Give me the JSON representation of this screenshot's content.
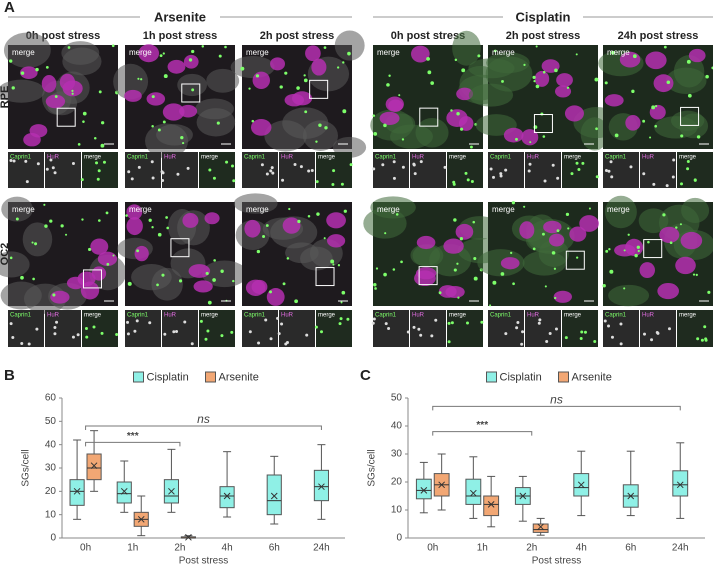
{
  "panel_a": {
    "label": "A",
    "groups": [
      {
        "title": "Arsenite",
        "columns": [
          "0h post stress",
          "1h post stress",
          "2h post stress"
        ]
      },
      {
        "title": "Cisplatin",
        "columns": [
          "0h post stress",
          "2h post stress",
          "24h post stress"
        ]
      }
    ],
    "rows": [
      "RPE",
      "OC2"
    ],
    "image_label": "merge",
    "channels": [
      "Caprin1",
      "HuR",
      "merge"
    ]
  },
  "chart_data": [
    {
      "type": "box",
      "panel_label": "B",
      "ylabel": "SGs/cell",
      "xlabel": "Post stress",
      "categories": [
        "0h",
        "1h",
        "2h",
        "4h",
        "6h",
        "24h"
      ],
      "ylim": [
        0,
        60
      ],
      "yticks": [
        0,
        10,
        20,
        30,
        40,
        50,
        60
      ],
      "legend": "top",
      "series": [
        {
          "name": "Cisplatin",
          "color": "#8ff0e6",
          "min": [
            8,
            11,
            11,
            9,
            6,
            8
          ],
          "q1": [
            14,
            15,
            15,
            13,
            10,
            16
          ],
          "median": [
            20,
            19,
            18,
            18,
            16,
            22
          ],
          "q3": [
            25,
            24,
            25,
            22,
            27,
            29
          ],
          "max": [
            42,
            33,
            38,
            37,
            35,
            40
          ],
          "mean": [
            20,
            20,
            20,
            18,
            18,
            22
          ]
        },
        {
          "name": "Arsenite",
          "color": "#f2a774",
          "min": [
            20,
            1,
            0,
            null,
            null,
            null
          ],
          "q1": [
            25,
            5,
            0,
            null,
            null,
            null
          ],
          "median": [
            30,
            8,
            0,
            null,
            null,
            null
          ],
          "q3": [
            36,
            11,
            0.5,
            null,
            null,
            null
          ],
          "max": [
            46,
            18,
            1,
            null,
            null,
            null
          ],
          "mean": [
            31,
            8,
            0.3,
            null,
            null,
            null
          ]
        }
      ],
      "annotations": [
        {
          "text": "ns",
          "y": 48,
          "span": [
            0,
            5
          ]
        },
        {
          "text": "***",
          "y": 41,
          "span": [
            0,
            2
          ]
        }
      ]
    },
    {
      "type": "box",
      "panel_label": "C",
      "ylabel": "SGs/cell",
      "xlabel": "Post stress",
      "categories": [
        "0h",
        "1h",
        "2h",
        "4h",
        "6h",
        "24h"
      ],
      "ylim": [
        0,
        50
      ],
      "yticks": [
        0,
        10,
        20,
        30,
        40,
        50
      ],
      "legend": "top",
      "series": [
        {
          "name": "Cisplatin",
          "color": "#8ff0e6",
          "min": [
            9,
            7,
            6,
            8,
            8,
            7
          ],
          "q1": [
            14,
            12,
            12,
            15,
            11,
            15
          ],
          "median": [
            17,
            15,
            15,
            18,
            15,
            19
          ],
          "q3": [
            21,
            21,
            18,
            23,
            19,
            24
          ],
          "max": [
            27,
            29,
            22,
            31,
            31,
            34
          ],
          "mean": [
            17,
            16,
            15,
            19,
            15,
            19
          ]
        },
        {
          "name": "Arsenite",
          "color": "#f2a774",
          "min": [
            10,
            4,
            1,
            null,
            null,
            null
          ],
          "q1": [
            15,
            8,
            2,
            null,
            null,
            null
          ],
          "median": [
            19,
            12,
            3,
            null,
            null,
            null
          ],
          "q3": [
            23,
            15,
            5,
            null,
            null,
            null
          ],
          "max": [
            30,
            22,
            7,
            null,
            null,
            null
          ],
          "mean": [
            19,
            12,
            4,
            null,
            null,
            null
          ]
        }
      ],
      "annotations": [
        {
          "text": "ns",
          "y": 47,
          "span": [
            0,
            5
          ]
        },
        {
          "text": "***",
          "y": 38,
          "span": [
            0,
            2
          ]
        }
      ]
    }
  ]
}
